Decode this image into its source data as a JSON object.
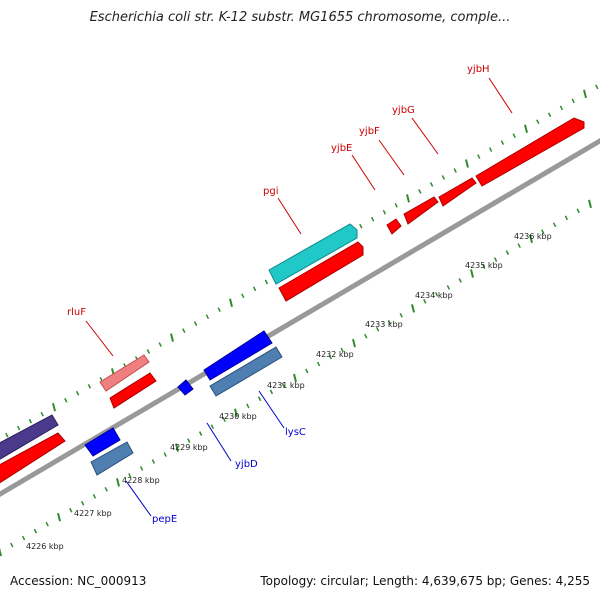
{
  "title": "Escherichia coli str. K-12 substr. MG1655 chromosome, comple...",
  "footer": {
    "accession": "Accession: NC_000913",
    "summary": "Topology: circular; Length: 4,639,675 bp; Genes: 4,255"
  },
  "colors": {
    "backbone": "#999999",
    "tick": "#2e8b2e",
    "forward_gene": "#ff0000",
    "forward_cds": "#ff1a1a",
    "reverse_gene": "#0000ff",
    "reverse_cds": "#4f7fb0",
    "rrna_like": "#f08080",
    "highlight": "#20c8c8",
    "dark": "#4b3a8c",
    "label_forward": "#cc0000",
    "label_reverse": "#0000cc"
  },
  "kbp_labels": [
    "4226 kbp",
    "4227 kbp",
    "4228 kbp",
    "4229 kbp",
    "4230 kbp",
    "4231 kbp",
    "4232 kbp",
    "4233 kbp",
    "4234 kbp",
    "4235 kbp",
    "4236 kbp"
  ],
  "gene_labels_forward": [
    "yjbH",
    "yjbG",
    "yjbF",
    "yjbE",
    "pgi",
    "rluF"
  ],
  "gene_labels_reverse": [
    "lysC",
    "yjbD",
    "pepE"
  ]
}
